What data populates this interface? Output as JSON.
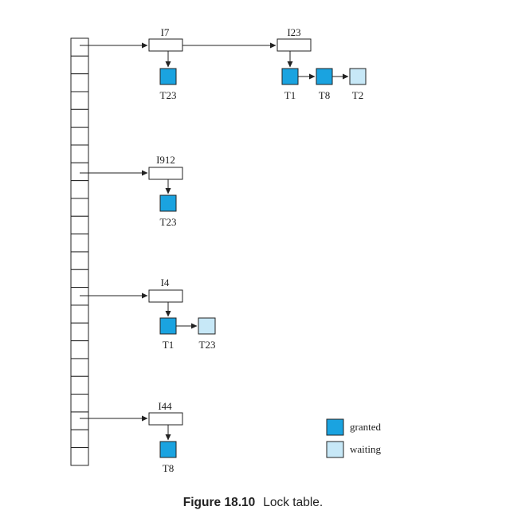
{
  "colors": {
    "granted": "#1aa3e0",
    "waiting": "#c7e8f7",
    "line": "#222222"
  },
  "table": {
    "slot_count": 24
  },
  "chains": [
    {
      "item": "I7",
      "slot": 2,
      "transactions": [
        {
          "id": "T23",
          "status": "granted"
        }
      ]
    },
    {
      "item": "I23",
      "from_item": "I7",
      "transactions": [
        {
          "id": "T1",
          "status": "granted"
        },
        {
          "id": "T8",
          "status": "granted"
        },
        {
          "id": "T2",
          "status": "waiting"
        }
      ]
    },
    {
      "item": "I912",
      "slot": 8,
      "transactions": [
        {
          "id": "T23",
          "status": "granted"
        }
      ]
    },
    {
      "item": "I4",
      "slot": 15,
      "transactions": [
        {
          "id": "T1",
          "status": "granted"
        },
        {
          "id": "T23",
          "status": "waiting"
        }
      ]
    },
    {
      "item": "I44",
      "slot": 21,
      "transactions": [
        {
          "id": "T8",
          "status": "granted"
        }
      ]
    }
  ],
  "legend": {
    "granted_label": "granted",
    "waiting_label": "waiting"
  },
  "caption": {
    "number": "Figure 18.10",
    "text": "Lock table."
  }
}
